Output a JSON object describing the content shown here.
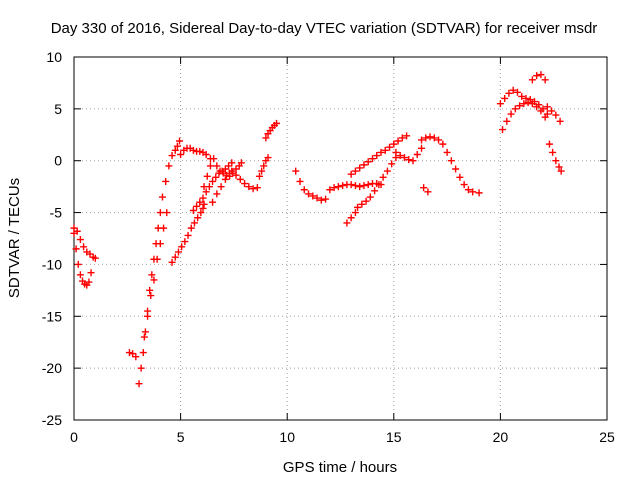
{
  "chart_data": {
    "type": "scatter",
    "title": "Day 330 of 2016, Sidereal Day-to-day VTEC variation (SDTVAR) for receiver msdr",
    "xlabel": "GPS time / hours",
    "ylabel": "SDTVAR / TECUs",
    "xlim": [
      0,
      25
    ],
    "ylim": [
      -25,
      10
    ],
    "xticks": [
      "0",
      "5",
      "10",
      "15",
      "20",
      "25"
    ],
    "yticks": [
      "-25",
      "-20",
      "-15",
      "-10",
      "-5",
      "0",
      "5",
      "10"
    ],
    "grid": true,
    "marker": "+",
    "color": "#ff0000",
    "series": [
      {
        "x": [
          0.0,
          0.1,
          0.2,
          0.3,
          0.4,
          0.5,
          0.6,
          0.7,
          0.8
        ],
        "y": [
          -6.5,
          -8.5,
          -10.0,
          -11.0,
          -11.6,
          -11.9,
          -12.0,
          -11.7,
          -10.8
        ]
      },
      {
        "x": [
          0.0,
          0.15,
          0.3,
          0.45,
          0.6,
          0.75,
          0.9,
          1.0
        ],
        "y": [
          -7.0,
          -6.8,
          -7.6,
          -8.3,
          -8.8,
          -9.0,
          -9.3,
          -9.4
        ]
      },
      {
        "x": [
          2.6,
          2.75,
          2.9
        ],
        "y": [
          -18.5,
          -18.6,
          -18.9
        ]
      },
      {
        "x": [
          3.05,
          3.15,
          3.25,
          3.35,
          3.45,
          3.55,
          3.65,
          3.75,
          3.85,
          3.95,
          4.05,
          4.15,
          4.3,
          4.45,
          4.6,
          4.75,
          4.85,
          4.95
        ],
        "y": [
          -21.5,
          -20.0,
          -18.5,
          -16.5,
          -14.5,
          -12.5,
          -11.0,
          -9.5,
          -8.0,
          -6.5,
          -5.0,
          -3.5,
          -2.0,
          -0.5,
          0.5,
          1.0,
          1.4,
          1.9
        ]
      },
      {
        "x": [
          3.3,
          3.45,
          3.6,
          3.75,
          3.9,
          4.05,
          4.2,
          4.35
        ],
        "y": [
          -17.0,
          -15.0,
          -13.0,
          -11.5,
          -9.5,
          -8.0,
          -6.5,
          -5.0
        ]
      },
      {
        "x": [
          4.6,
          4.75,
          4.9,
          5.05,
          5.2,
          5.35,
          5.5,
          5.65,
          5.8,
          5.95,
          6.05,
          6.1
        ],
        "y": [
          -9.8,
          -9.3,
          -8.8,
          -8.3,
          -7.8,
          -7.2,
          -6.5,
          -6.0,
          -5.5,
          -5.0,
          -4.6,
          -4.2
        ]
      },
      {
        "x": [
          5.0,
          5.15,
          5.3,
          5.45,
          5.6,
          5.75,
          5.9,
          6.05,
          6.2,
          6.4
        ],
        "y": [
          0.6,
          1.0,
          1.2,
          1.2,
          1.0,
          0.9,
          0.9,
          0.8,
          0.6,
          0.2
        ]
      },
      {
        "x": [
          5.6,
          5.75,
          5.9,
          6.05,
          6.2,
          6.35,
          6.5,
          6.65,
          6.8,
          6.95,
          7.1,
          7.25,
          7.4
        ],
        "y": [
          -4.8,
          -4.4,
          -4.0,
          -3.6,
          -3.0,
          -2.5,
          -2.0,
          -1.6,
          -1.2,
          -1.0,
          -0.8,
          -0.5,
          -0.2
        ]
      },
      {
        "x": [
          6.1,
          6.25,
          6.4,
          6.55,
          6.7,
          6.85,
          7.0,
          7.15,
          7.3,
          7.45,
          7.6,
          7.75,
          7.85
        ],
        "y": [
          -2.5,
          -1.5,
          -0.5,
          0.2,
          -0.5,
          -1.0,
          -1.2,
          -1.4,
          -1.5,
          -1.2,
          -0.8,
          -0.5,
          -0.2
        ]
      },
      {
        "x": [
          6.5,
          6.7,
          6.9,
          7.1,
          7.3
        ],
        "y": [
          -4.0,
          -3.2,
          -2.5,
          -1.8,
          -1.2
        ]
      },
      {
        "x": [
          7.4,
          7.6,
          7.8,
          8.0,
          8.2,
          8.4,
          8.6
        ],
        "y": [
          -1.0,
          -1.4,
          -1.8,
          -2.2,
          -2.5,
          -2.7,
          -2.6
        ]
      },
      {
        "x": [
          8.7,
          8.8,
          8.9,
          9.0,
          9.1
        ],
        "y": [
          -1.5,
          -1.0,
          -0.5,
          0.0,
          0.3
        ]
      },
      {
        "x": [
          9.0,
          9.1,
          9.2,
          9.3,
          9.4,
          9.5
        ],
        "y": [
          2.2,
          2.6,
          2.9,
          3.2,
          3.4,
          3.6
        ]
      },
      {
        "x": [
          10.4,
          10.6,
          10.8,
          11.0,
          11.2,
          11.4,
          11.6,
          11.8
        ],
        "y": [
          -1.0,
          -2.0,
          -2.8,
          -3.2,
          -3.4,
          -3.6,
          -3.8,
          -3.7
        ]
      },
      {
        "x": [
          12.0,
          12.2,
          12.4,
          12.6,
          12.8,
          13.0,
          13.2,
          13.4,
          13.6,
          13.8,
          14.0,
          14.2,
          14.4
        ],
        "y": [
          -2.8,
          -2.6,
          -2.5,
          -2.4,
          -2.3,
          -2.3,
          -2.4,
          -2.5,
          -2.4,
          -2.3,
          -2.2,
          -2.2,
          -2.3
        ]
      },
      {
        "x": [
          12.8,
          13.0,
          13.2
        ],
        "y": [
          -6.0,
          -5.5,
          -5.0
        ]
      },
      {
        "x": [
          13.0,
          13.2,
          13.4,
          13.6,
          13.8,
          14.0,
          14.2,
          14.4,
          14.6,
          14.8,
          15.0,
          15.2,
          15.4,
          15.6
        ],
        "y": [
          -1.3,
          -1.0,
          -0.7,
          -0.4,
          -0.1,
          0.2,
          0.5,
          0.8,
          1.0,
          1.3,
          1.6,
          1.9,
          2.2,
          2.4
        ]
      },
      {
        "x": [
          13.3,
          13.5,
          13.7,
          13.9,
          14.1,
          14.3,
          14.5,
          14.7,
          14.9,
          15.1
        ],
        "y": [
          -4.5,
          -4.2,
          -3.9,
          -3.5,
          -2.9,
          -2.3,
          -1.6,
          -1.0,
          -0.3,
          0.3
        ]
      },
      {
        "x": [
          15.1,
          15.3,
          15.5,
          15.7,
          15.9,
          16.1,
          16.3
        ],
        "y": [
          0.8,
          0.5,
          0.3,
          0.1,
          0.0,
          0.6,
          1.2
        ]
      },
      {
        "x": [
          16.3,
          16.5,
          16.7,
          16.9,
          17.1,
          17.3,
          17.5,
          17.7,
          17.9,
          18.1,
          18.3,
          18.5,
          18.7,
          19.0
        ],
        "y": [
          2.0,
          2.2,
          2.3,
          2.2,
          2.0,
          1.6,
          0.8,
          0.0,
          -0.8,
          -1.6,
          -2.3,
          -2.8,
          -3.0,
          -3.1
        ]
      },
      {
        "x": [
          16.4,
          16.6
        ],
        "y": [
          -2.6,
          -3.0
        ]
      },
      {
        "x": [
          20.0,
          20.2,
          20.4,
          20.6,
          20.8,
          21.0,
          21.2,
          21.4,
          21.6,
          21.8,
          22.0,
          22.2
        ],
        "y": [
          5.5,
          6.0,
          6.5,
          6.8,
          6.6,
          6.2,
          6.0,
          5.9,
          5.7,
          5.4,
          5.0,
          4.5
        ]
      },
      {
        "x": [
          20.1,
          20.3,
          20.5,
          20.7,
          20.9,
          21.1,
          21.3,
          21.5,
          21.7,
          21.9,
          22.1
        ],
        "y": [
          3.0,
          3.8,
          4.5,
          5.0,
          5.3,
          5.5,
          5.6,
          5.5,
          5.2,
          4.8,
          4.2
        ]
      },
      {
        "x": [
          21.5,
          21.7,
          21.9,
          22.1
        ],
        "y": [
          7.8,
          8.2,
          8.3,
          7.8
        ]
      },
      {
        "x": [
          22.2,
          22.4,
          22.6,
          22.8
        ],
        "y": [
          5.2,
          4.8,
          4.4,
          3.8
        ]
      },
      {
        "x": [
          22.3,
          22.45,
          22.6,
          22.75,
          22.85
        ],
        "y": [
          1.6,
          0.8,
          0.0,
          -0.6,
          -1.0
        ]
      }
    ]
  }
}
